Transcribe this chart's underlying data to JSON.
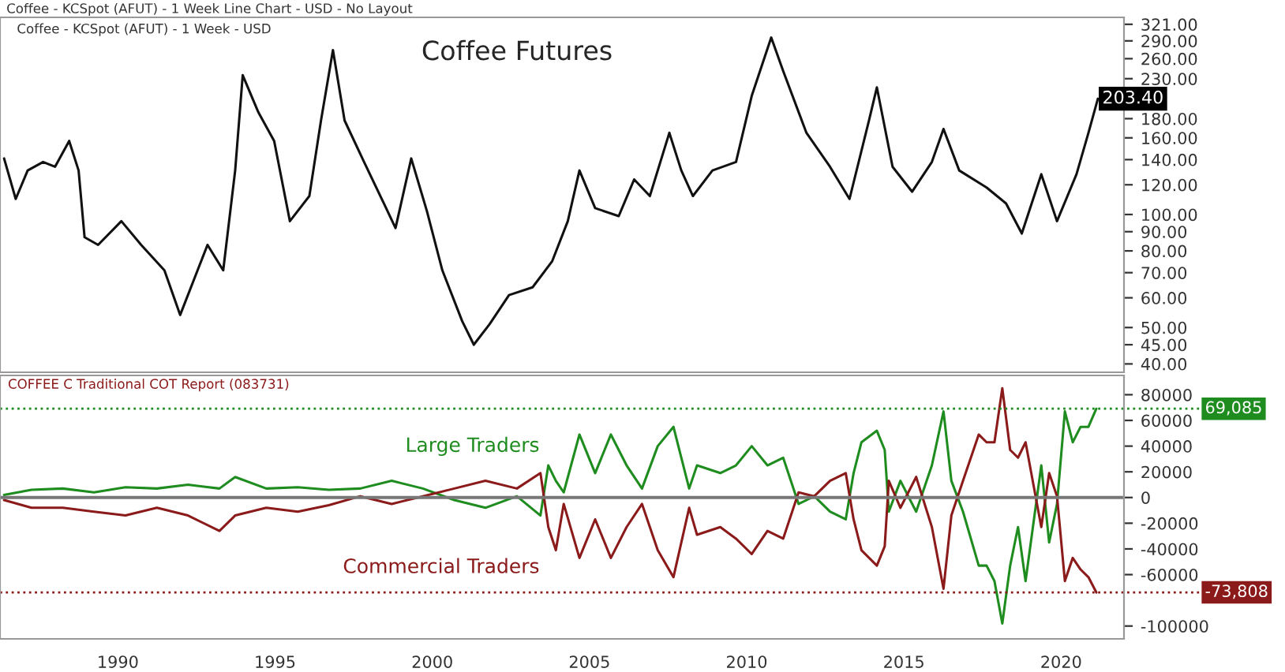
{
  "chart_data": [
    {
      "type": "line",
      "title": "Coffee Futures",
      "subtitle": "Coffee - KCSpot (AFUT) - 1 Week - USD",
      "annotations": [
        "Coffee - KCSpot (AFUT) - 1 Week Line Chart - USD - No Layout",
        {
          "text": "203.40",
          "x": 2021.17,
          "y": 203.4
        }
      ],
      "series": [
        {
          "color": "#111111",
          "x": [
            1986.38,
            1986.75,
            1987.13,
            1987.62,
            1988.0,
            1988.45,
            1988.75,
            1988.94,
            1989.37,
            1990.11,
            1990.74,
            1991.48,
            1991.98,
            1992.85,
            1993.35,
            1993.73,
            1993.97,
            1994.47,
            1994.97,
            1995.47,
            1996.09,
            1996.46,
            1996.84,
            1997.21,
            1997.83,
            1998.46,
            1998.83,
            1999.33,
            1999.83,
            2000.32,
            2000.95,
            2001.32,
            2001.82,
            2002.44,
            2003.19,
            2003.81,
            2004.31,
            2004.68,
            2005.18,
            2005.93,
            2006.42,
            2006.92,
            2007.54,
            2007.92,
            2008.29,
            2008.91,
            2009.66,
            2010.16,
            2010.78,
            2011.16,
            2011.9,
            2012.65,
            2013.27,
            2013.89,
            2014.14,
            2014.64,
            2015.26,
            2015.89,
            2016.26,
            2016.76,
            2017.63,
            2018.25,
            2018.75,
            2019.37,
            2019.87,
            2020.49,
            2020.87,
            2021.17
          ],
          "values": [
            141,
            110,
            131,
            138,
            134,
            157,
            131,
            87,
            83,
            96,
            83,
            71,
            54,
            83,
            71,
            131,
            235,
            187,
            157,
            96,
            112,
            178,
            274,
            178,
            138,
            107,
            92,
            141,
            102,
            71,
            52,
            45,
            51,
            61,
            64,
            75,
            96,
            131,
            104,
            99,
            124,
            112,
            165,
            131,
            112,
            131,
            138,
            207,
            296,
            241,
            165,
            134,
            110,
            178,
            218,
            134,
            115,
            138,
            169,
            131,
            118,
            107,
            89,
            128,
            96,
            128,
            165,
            203.4
          ]
        }
      ],
      "xlim": [
        1986.25,
        2022
      ],
      "ylim": [
        38,
        335
      ],
      "log": true,
      "tick_labels": "y",
      "grid": false,
      "legend": false,
      "yticks": [
        {
          "value": 321,
          "label": "321.00"
        },
        {
          "value": 290,
          "label": "290.00"
        },
        {
          "value": 260,
          "label": "260.00"
        },
        {
          "value": 230,
          "label": "230.00"
        },
        {
          "value": 180,
          "label": "180.00"
        },
        {
          "value": 160,
          "label": "160.00"
        },
        {
          "value": 140,
          "label": "140.00"
        },
        {
          "value": 120,
          "label": "120.00"
        },
        {
          "value": 100,
          "label": "100.00"
        },
        {
          "value": 90,
          "label": "90.00"
        },
        {
          "value": 80,
          "label": "80.00"
        },
        {
          "value": 70,
          "label": "70.00"
        },
        {
          "value": 60,
          "label": "60.00"
        },
        {
          "value": 50,
          "label": "50.00"
        },
        {
          "value": 45,
          "label": "45.00"
        },
        {
          "value": 40,
          "label": "40.00"
        }
      ]
    },
    {
      "type": "line",
      "title": "COFFEE C Traditional COT Report (083731)",
      "x": [
        1986.38,
        1987.25,
        1988.25,
        1989.24,
        1990.24,
        1991.24,
        1992.23,
        1993.23,
        1993.73,
        1994.72,
        1995.72,
        1996.71,
        1997.71,
        1998.71,
        1999.7,
        2000.7,
        2001.69,
        2002.69,
        2003.44,
        2003.69,
        2003.93,
        2004.18,
        2004.68,
        2005.18,
        2005.68,
        2006.18,
        2006.67,
        2007.17,
        2007.67,
        2008.17,
        2008.42,
        2009.16,
        2009.66,
        2010.16,
        2010.66,
        2011.16,
        2011.65,
        2012.15,
        2012.65,
        2013.15,
        2013.4,
        2013.65,
        2014.14,
        2014.39,
        2014.52,
        2014.89,
        2015.39,
        2015.89,
        2016.26,
        2016.51,
        2016.88,
        2017.38,
        2017.63,
        2017.88,
        2018.13,
        2018.38,
        2018.63,
        2018.87,
        2019.37,
        2019.62,
        2019.87,
        2020.12,
        2020.37,
        2020.62,
        2020.87,
        2021.12
      ],
      "series": [
        {
          "name": "Large Traders",
          "color": "#1e8c1e",
          "values": [
            2000,
            6000,
            7000,
            4000,
            8000,
            7000,
            10000,
            7000,
            16000,
            7000,
            8000,
            6000,
            7000,
            13000,
            7000,
            -2000,
            -8000,
            1000,
            -14000,
            25000,
            13000,
            4000,
            49000,
            19000,
            49000,
            25000,
            7000,
            40000,
            55000,
            7000,
            25000,
            19000,
            25000,
            40000,
            25000,
            31000,
            -5000,
            1000,
            -11000,
            -17000,
            19000,
            43000,
            52000,
            37000,
            -11000,
            13000,
            -11000,
            25000,
            67000,
            13000,
            -11000,
            -53000,
            -53000,
            -65000,
            -98000,
            -53000,
            -23000,
            -65000,
            25000,
            -35000,
            -5000,
            67000,
            43000,
            55000,
            55000,
            69085
          ]
        },
        {
          "name": "Commercial Traders",
          "color": "#8b1a1a",
          "values": [
            -2000,
            -8000,
            -8000,
            -11000,
            -14000,
            -8000,
            -14000,
            -26000,
            -14000,
            -8000,
            -11000,
            -6000,
            1000,
            -5000,
            1000,
            7000,
            13000,
            7000,
            19000,
            -23000,
            -41000,
            -5000,
            -47000,
            -17000,
            -47000,
            -23000,
            -5000,
            -41000,
            -62000,
            -8000,
            -29000,
            -23000,
            -32000,
            -44000,
            -26000,
            -32000,
            4000,
            1000,
            13000,
            19000,
            -17000,
            -41000,
            -53000,
            -38000,
            13000,
            -8000,
            16000,
            -23000,
            -71000,
            -14000,
            13000,
            49000,
            43000,
            43000,
            85000,
            37000,
            31000,
            43000,
            -23000,
            19000,
            1000,
            -65000,
            -47000,
            -56000,
            -62000,
            -73808
          ]
        }
      ],
      "xlim": [
        1986.25,
        2022
      ],
      "ylim": [
        -110000,
        95000
      ],
      "grid": false,
      "legend": false,
      "xticks": [
        1990,
        1995,
        2000,
        2005,
        2010,
        2015,
        2020
      ],
      "yticks": [
        80000,
        60000,
        40000,
        20000,
        0,
        -20000,
        -40000,
        -60000,
        -100000
      ],
      "ref_lines": [
        {
          "axis": "y",
          "value": 0,
          "color": "#777777",
          "line_style": "solid"
        },
        {
          "axis": "y",
          "value": 69085,
          "label": "69,085",
          "color": "#1e8c1e",
          "line_style": "dotted"
        },
        {
          "axis": "y",
          "value": -73808,
          "label": "-73,808",
          "color": "#8b1a1a",
          "line_style": "dotted"
        }
      ]
    }
  ]
}
